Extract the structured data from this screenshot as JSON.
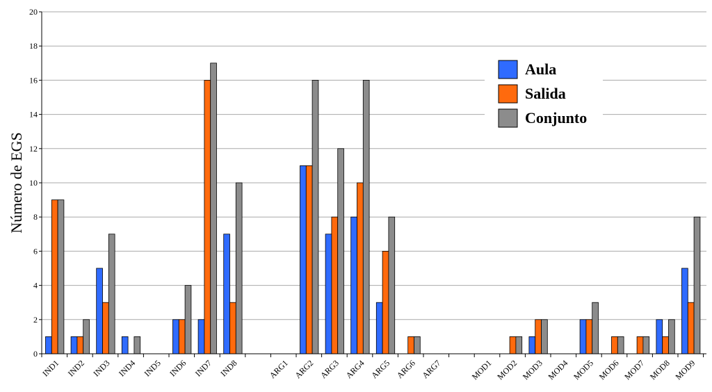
{
  "chart_data": {
    "type": "bar",
    "title": "",
    "xlabel": "",
    "ylabel": "Número de EGS",
    "ylim": [
      0,
      20
    ],
    "yticks": [
      0,
      2,
      4,
      6,
      8,
      10,
      12,
      14,
      16,
      18,
      20
    ],
    "grid": true,
    "legend_position": "top-right",
    "categories": [
      "IND1",
      "IND2",
      "IND3",
      "IND4",
      "IND5",
      "IND6",
      "IND7",
      "IND8",
      "",
      "ARG1",
      "ARG2",
      "ARG3",
      "ARG4",
      "ARG5",
      "ARG6",
      "ARG7",
      "",
      "MOD1",
      "MOD2",
      "MOD3",
      "MOD4",
      "MOD5",
      "MOD6",
      "MOD7",
      "MOD8",
      "MOD9"
    ],
    "series": [
      {
        "name": "Aula",
        "color": "#2f6bff",
        "values": [
          1,
          1,
          5,
          1,
          0,
          2,
          2,
          7,
          null,
          0,
          11,
          7,
          8,
          3,
          0,
          0,
          null,
          0,
          0,
          1,
          0,
          2,
          0,
          0,
          2,
          5
        ]
      },
      {
        "name": "Salida",
        "color": "#ff6a0d",
        "values": [
          9,
          1,
          3,
          0,
          0,
          2,
          16,
          3,
          null,
          0,
          11,
          8,
          10,
          6,
          1,
          0,
          null,
          0,
          1,
          2,
          0,
          2,
          1,
          1,
          1,
          3
        ]
      },
      {
        "name": "Conjunto",
        "color": "#8c8c8c",
        "values": [
          9,
          2,
          7,
          1,
          0,
          4,
          17,
          10,
          null,
          0,
          16,
          12,
          16,
          8,
          1,
          0,
          null,
          0,
          1,
          2,
          0,
          3,
          1,
          1,
          2,
          8
        ]
      }
    ]
  }
}
